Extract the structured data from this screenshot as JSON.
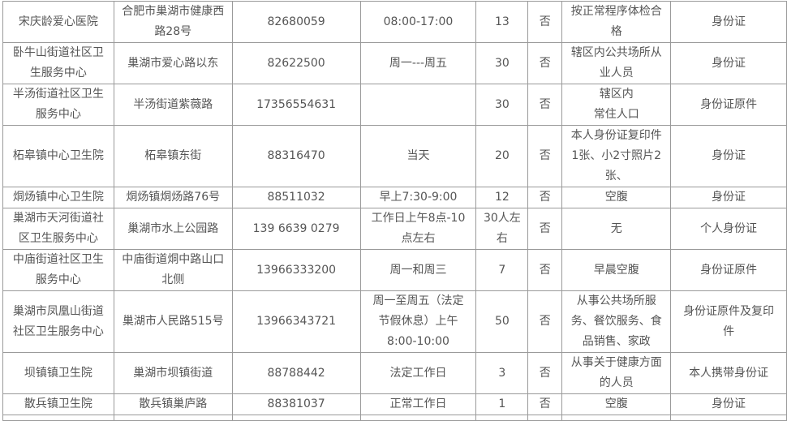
{
  "rows": [
    {
      "name": "宋庆龄爱心医院",
      "address": "合肥市巢湖市健康西\n路28号",
      "phone": "82680059",
      "time": "08:00-17:00",
      "quota": "13",
      "fee": "否",
      "requirement": "按正常程序体检合\n格",
      "document": "身份证"
    },
    {
      "name": "卧牛山街道社区卫\n生服务中心",
      "address": "巢湖市爱心路以东",
      "phone": "82622500",
      "time": "周一---周五",
      "quota": "30",
      "fee": "否",
      "requirement": "辖区内公共场所从\n业人员",
      "document": "身份证"
    },
    {
      "name": "半汤街道社区卫生\n服务中心",
      "address": "半汤街道紫薇路",
      "phone": "17356554631",
      "time": "",
      "quota": "30",
      "fee": "否",
      "requirement": "辖区内\n常住人口",
      "document": "身份证原件"
    },
    {
      "name": "柘皋镇中心卫生院",
      "address": "柘皋镇东街",
      "phone": "88316470",
      "time": "当天",
      "quota": "20",
      "fee": "否",
      "requirement": "本人身份证复印件\n1张、小2寸照片2\n张、",
      "document": "身份证"
    },
    {
      "name": "烔炀镇中心卫生院",
      "address": "烔炀镇烔炀路76号",
      "phone": "88511032",
      "time": "早上7:30-9:00",
      "quota": "12",
      "fee": "否",
      "requirement": "空腹",
      "document": "身份证"
    },
    {
      "name": "巢湖市天河街道社\n区卫生服务中心",
      "address": "巢湖市水上公园路",
      "phone": "139 6639 0279",
      "time": "工作日上午8点-10\n点左右",
      "quota": "30人左\n右",
      "fee": "否",
      "requirement": "无",
      "document": "个人身份证"
    },
    {
      "name": "中庙街道社区卫生\n服务中心",
      "address": "中庙街道烔中路山口\n北侧",
      "phone": "13966333200",
      "time": "周一和周三",
      "quota": "7",
      "fee": "否",
      "requirement": "早晨空腹",
      "document": "身份证原件"
    },
    {
      "name": "巢湖市凤凰山街道\n社区卫生服务中心",
      "address": "巢湖市人民路515号",
      "phone": "13966343721",
      "time": "周一至周五（法定\n节假休息）上午\n8:00-10:00",
      "quota": "50",
      "fee": "否",
      "requirement": "从事公共场所服\n务、餐饮服务、食\n品销售、家政",
      "document": "身份证原件及复印\n件"
    },
    {
      "name": "坝镇镇卫生院",
      "address": "巢湖市坝镇街道",
      "phone": "88788442",
      "time": "法定工作日",
      "quota": "3",
      "fee": "否",
      "requirement": "从事关于健康方面\n的人员",
      "document": "本人携带身份证"
    },
    {
      "name": "散兵镇卫生院",
      "address": "散兵镇巢庐路",
      "phone": "88381037",
      "time": "正常工作日",
      "quota": "1",
      "fee": "否",
      "requirement": "空腹",
      "document": "身份证"
    }
  ]
}
